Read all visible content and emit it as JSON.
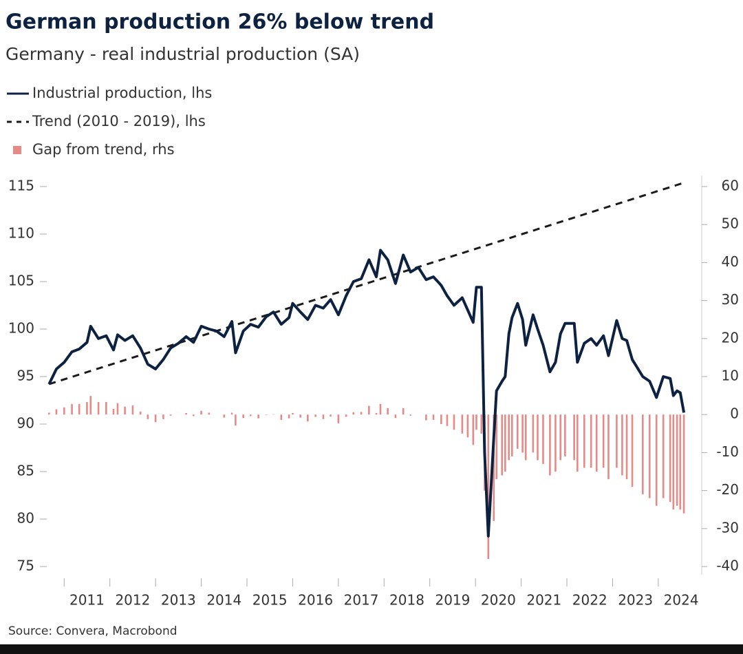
{
  "chart_data": {
    "type": "line",
    "title": "German production 26% below trend",
    "subtitle": "Germany - real industrial production (SA)",
    "source": "Source: Convera, Macrobond",
    "x": [
      2010.67,
      2010.83,
      2011.0,
      2011.17,
      2011.33,
      2011.5,
      2011.58,
      2011.75,
      2011.92,
      2012.08,
      2012.17,
      2012.33,
      2012.5,
      2012.67,
      2012.83,
      2013.0,
      2013.17,
      2013.33,
      2013.5,
      2013.67,
      2013.83,
      2014.0,
      2014.17,
      2014.33,
      2014.5,
      2014.67,
      2014.75,
      2014.92,
      2015.08,
      2015.25,
      2015.42,
      2015.58,
      2015.75,
      2015.92,
      2016.0,
      2016.17,
      2016.33,
      2016.5,
      2016.67,
      2016.83,
      2017.0,
      2017.17,
      2017.33,
      2017.5,
      2017.67,
      2017.83,
      2017.92,
      2018.08,
      2018.25,
      2018.42,
      2018.58,
      2018.75,
      2018.92,
      2019.08,
      2019.25,
      2019.38,
      2019.53,
      2019.71,
      2019.83,
      2019.95,
      2020.02,
      2020.13,
      2020.2,
      2020.28,
      2020.4,
      2020.46,
      2020.58,
      2020.65,
      2020.73,
      2020.8,
      2020.92,
      2021.03,
      2021.1,
      2021.26,
      2021.36,
      2021.48,
      2021.63,
      2021.75,
      2021.86,
      2021.96,
      2022.16,
      2022.23,
      2022.38,
      2022.53,
      2022.65,
      2022.8,
      2022.91,
      2023.09,
      2023.21,
      2023.31,
      2023.43,
      2023.66,
      2023.81,
      2023.96,
      2024.11,
      2024.26,
      2024.33,
      2024.41,
      2024.48,
      2024.56
    ],
    "series": [
      {
        "name": "Industrial production, lhs",
        "type": "line",
        "axis": "y",
        "color": "#0d2240",
        "values": [
          94.2,
          95.8,
          96.5,
          97.6,
          97.9,
          98.6,
          100.3,
          99.0,
          99.3,
          97.8,
          99.4,
          98.8,
          99.3,
          98.0,
          96.3,
          95.8,
          96.8,
          98.0,
          98.5,
          99.2,
          98.6,
          100.3,
          100.0,
          99.8,
          99.2,
          100.8,
          97.5,
          99.8,
          100.5,
          100.2,
          101.3,
          101.8,
          100.5,
          101.2,
          102.7,
          101.8,
          101.0,
          102.5,
          102.2,
          103.1,
          101.5,
          103.5,
          105.0,
          105.3,
          107.3,
          105.5,
          108.3,
          107.3,
          104.8,
          107.8,
          106.0,
          106.5,
          105.2,
          105.5,
          104.6,
          103.5,
          102.5,
          103.3,
          102.0,
          100.7,
          104.4,
          104.4,
          87.0,
          78.2,
          88.5,
          93.5,
          94.5,
          95.0,
          99.5,
          101.2,
          102.7,
          101.0,
          98.3,
          101.5,
          100.0,
          98.3,
          95.5,
          96.5,
          99.5,
          100.6,
          100.6,
          96.5,
          98.5,
          99.0,
          98.3,
          99.3,
          97.2,
          100.9,
          99.0,
          98.8,
          96.8,
          95.0,
          94.5,
          92.8,
          95.0,
          94.8,
          93.0,
          93.5,
          93.3,
          91.2
        ]
      },
      {
        "name": "Trend (2010 - 2019), lhs",
        "type": "line",
        "dash": true,
        "axis": "y",
        "color": "#1a1a1a",
        "x": [
          2010.67,
          2024.56
        ],
        "values": [
          94.2,
          115.4
        ]
      },
      {
        "name": "Gap from trend, rhs",
        "type": "bar",
        "axis": "y2",
        "color": "#e58a86",
        "values": [
          0.5,
          1.4,
          1.9,
          2.8,
          2.8,
          3.3,
          4.9,
          3.3,
          3.3,
          1.5,
          3.0,
          2.1,
          2.4,
          0.8,
          -1.2,
          -2.0,
          -1.2,
          -0.3,
          0,
          0.4,
          -0.4,
          1.0,
          0.5,
          0,
          -0.8,
          0.5,
          -2.9,
          -0.9,
          -0.4,
          -1.0,
          -0.1,
          0.1,
          -1.4,
          -1.0,
          0.4,
          -0.8,
          -1.8,
          -0.6,
          -1.2,
          -0.5,
          -2.3,
          -0.6,
          0.6,
          0.7,
          2.3,
          0.4,
          2.8,
          1.7,
          -0.9,
          1.7,
          -0.3,
          0,
          -1.5,
          -1.4,
          -2.5,
          -3,
          -4,
          -5,
          -6,
          -8,
          -4,
          -5,
          -20,
          -38,
          -28,
          -17,
          -16,
          -15,
          -12,
          -11,
          -9,
          -10,
          -12,
          -10,
          -12,
          -13,
          -16,
          -15,
          -12,
          -11,
          -12,
          -15,
          -14,
          -14,
          -15,
          -14,
          -17,
          -14,
          -16,
          -17,
          -19,
          -21,
          -22,
          -24,
          -22,
          -23,
          -25,
          -24,
          -25,
          -26
        ]
      }
    ],
    "xlim": [
      2010.65,
      2024.95
    ],
    "xticks": [
      2011,
      2012,
      2013,
      2014,
      2015,
      2016,
      2017,
      2018,
      2019,
      2020,
      2021,
      2022,
      2023,
      2024
    ],
    "ylim": [
      75,
      115
    ],
    "yticks": [
      75,
      80,
      85,
      90,
      95,
      100,
      105,
      110,
      115
    ],
    "y2lim": [
      -40,
      60
    ],
    "y2ticks": [
      -40,
      -30,
      -20,
      -10,
      0,
      10,
      20,
      30,
      40,
      50,
      60
    ],
    "legend": "top-left"
  }
}
